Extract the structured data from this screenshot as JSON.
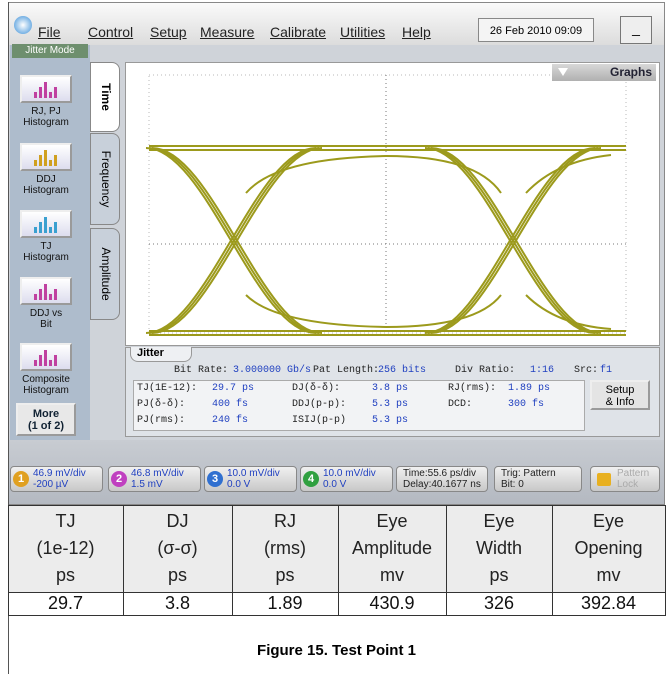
{
  "menu": {
    "items": [
      "File",
      "Control",
      "Setup",
      "Measure",
      "Calibrate",
      "Utilities",
      "Help"
    ],
    "datetime": "26 Feb 2010  09:09",
    "minimize": "_"
  },
  "side_panel": {
    "mode": "Jitter Mode",
    "buttons": [
      [
        "RJ, PJ",
        "Histogram"
      ],
      [
        "DDJ",
        "Histogram"
      ],
      [
        "TJ",
        "Histogram"
      ],
      [
        "DDJ vs",
        "Bit"
      ],
      [
        "Composite",
        "Histogram"
      ]
    ],
    "more": [
      "More",
      "(1 of 2)"
    ]
  },
  "tabs": [
    "Time",
    "Frequency",
    "Amplitude"
  ],
  "graphs_button": "Graphs",
  "jitter": {
    "title": "Jitter",
    "settings": [
      {
        "label": "Bit Rate:",
        "value": "3.000000 Gb/s"
      },
      {
        "label": "Pat Length:",
        "value": "256 bits"
      },
      {
        "label": "Div Ratio:",
        "value": "1:16"
      },
      {
        "label": "Src:",
        "value": "f1"
      }
    ],
    "measurements": [
      [
        {
          "label": "TJ(1E-12):",
          "value": "29.7 ps"
        },
        {
          "label": "DJ(δ-δ):",
          "value": "3.8 ps"
        },
        {
          "label": "RJ(rms):",
          "value": "1.89 ps"
        }
      ],
      [
        {
          "label": "PJ(δ-δ):",
          "value": "400 fs"
        },
        {
          "label": "DDJ(p-p):",
          "value": "5.3 ps"
        },
        {
          "label": "DCD:",
          "value": "300 fs"
        }
      ],
      [
        {
          "label": "PJ(rms):",
          "value": "240 fs"
        },
        {
          "label": "ISIJ(p-p)",
          "value": "5.3 ps"
        }
      ]
    ],
    "setup_info": [
      "Setup",
      "& Info"
    ]
  },
  "bottom_bar": {
    "channels": [
      {
        "number": "1",
        "scale": "46.9 mV/div",
        "offset": "-200 µV"
      },
      {
        "number": "2",
        "scale": "46.8 mV/div",
        "offset": "1.5 mV"
      },
      {
        "number": "3",
        "scale": "10.0 mV/div",
        "offset": "0.0 V"
      },
      {
        "number": "4",
        "scale": "10.0 mV/div",
        "offset": "0.0 V"
      }
    ],
    "time": [
      "Time:55.6 ps/div",
      "Delay:40.1677 ns"
    ],
    "trigger": [
      "Trig: Pattern",
      "Bit: 0"
    ],
    "lock": [
      "Pattern",
      "Lock"
    ]
  },
  "table": {
    "header": [
      [
        "TJ",
        "(1e-12)",
        "ps"
      ],
      [
        "DJ",
        "(σ-σ)",
        "ps"
      ],
      [
        "RJ",
        "(rms)",
        "ps"
      ],
      [
        "Eye",
        "Amplitude",
        "mv"
      ],
      [
        "Eye",
        "Width",
        "ps"
      ],
      [
        "Eye",
        "Opening",
        "mv"
      ]
    ],
    "rows": [
      [
        "29.7",
        "3.8",
        "1.89",
        "430.9",
        "326",
        "392.84"
      ]
    ]
  },
  "caption": "Figure 15. Test Point 1"
}
